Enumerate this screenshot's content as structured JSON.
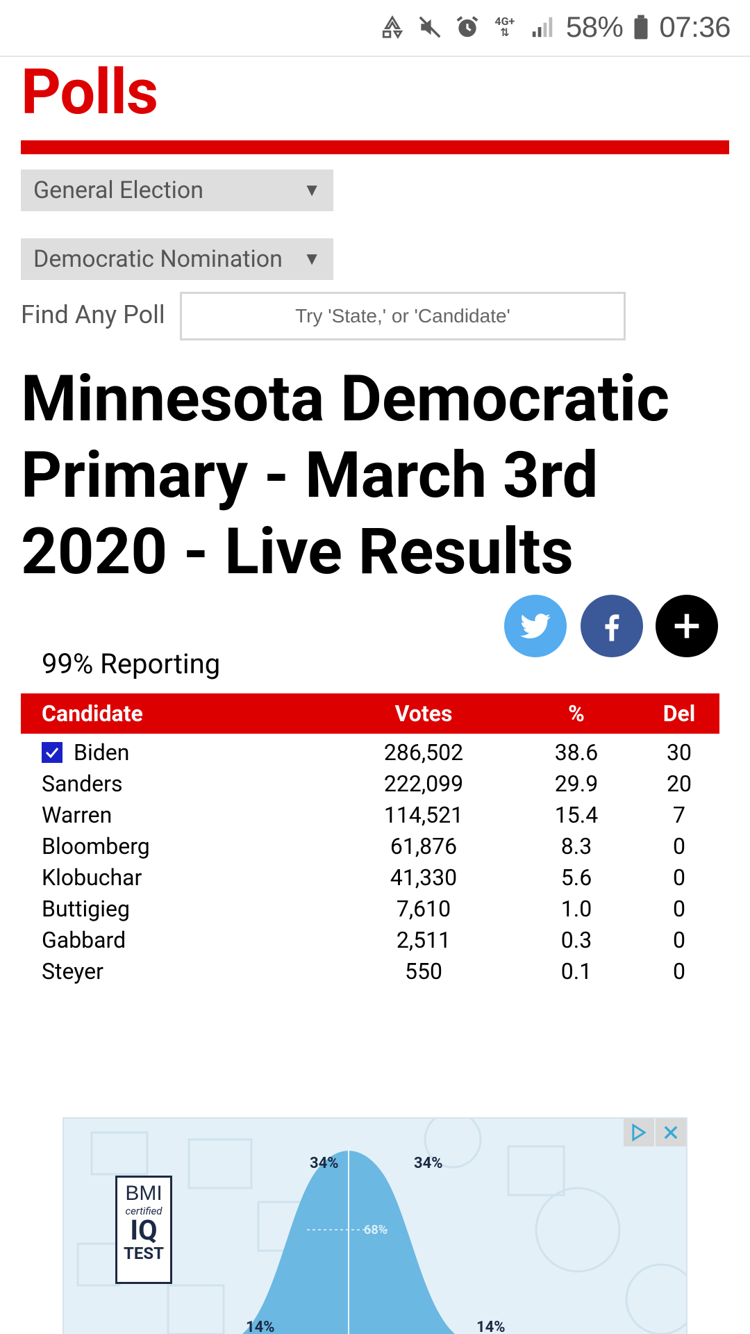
{
  "status_bar": {
    "network": "4G+",
    "battery": "58%",
    "time": "07:36"
  },
  "header": {
    "title": "Polls"
  },
  "filters": {
    "general": "General Election",
    "democratic": "Democratic Nomination",
    "caret": "▼"
  },
  "search": {
    "label": "Find Any Poll",
    "placeholder": "Try 'State,' or 'Candidate'"
  },
  "page": {
    "headline": "Minnesota Democratic Primary - March 3rd 2020 - Live Results",
    "reporting": "99% Reporting"
  },
  "table": {
    "headers": {
      "candidate": "Candidate",
      "votes": "Votes",
      "pct": "%",
      "del": "Del"
    },
    "rows": [
      {
        "name": "Biden",
        "votes": "286,502",
        "pct": "38.6",
        "del": "30",
        "winner": true
      },
      {
        "name": "Sanders",
        "votes": "222,099",
        "pct": "29.9",
        "del": "20"
      },
      {
        "name": "Warren",
        "votes": "114,521",
        "pct": "15.4",
        "del": "7"
      },
      {
        "name": "Bloomberg",
        "votes": "61,876",
        "pct": "8.3",
        "del": "0"
      },
      {
        "name": "Klobuchar",
        "votes": "41,330",
        "pct": "5.6",
        "del": "0"
      },
      {
        "name": "Buttigieg",
        "votes": "7,610",
        "pct": "1.0",
        "del": "0"
      },
      {
        "name": "Gabbard",
        "votes": "2,511",
        "pct": "0.3",
        "del": "0"
      },
      {
        "name": "Steyer",
        "votes": "550",
        "pct": "0.1",
        "del": "0"
      }
    ]
  },
  "ad": {
    "logo": {
      "line1": "BMI",
      "line2": "certified",
      "line3": "IQ",
      "line4": "TEST"
    },
    "labels": {
      "top_left": "34%",
      "top_right": "34%",
      "center": "68%",
      "bottom_left": "14%",
      "bottom_right": "14%"
    }
  },
  "colors": {
    "brand_red": "#dd0000",
    "twitter": "#55acee",
    "facebook": "#3b5998",
    "checkbox": "#1a21c6"
  }
}
